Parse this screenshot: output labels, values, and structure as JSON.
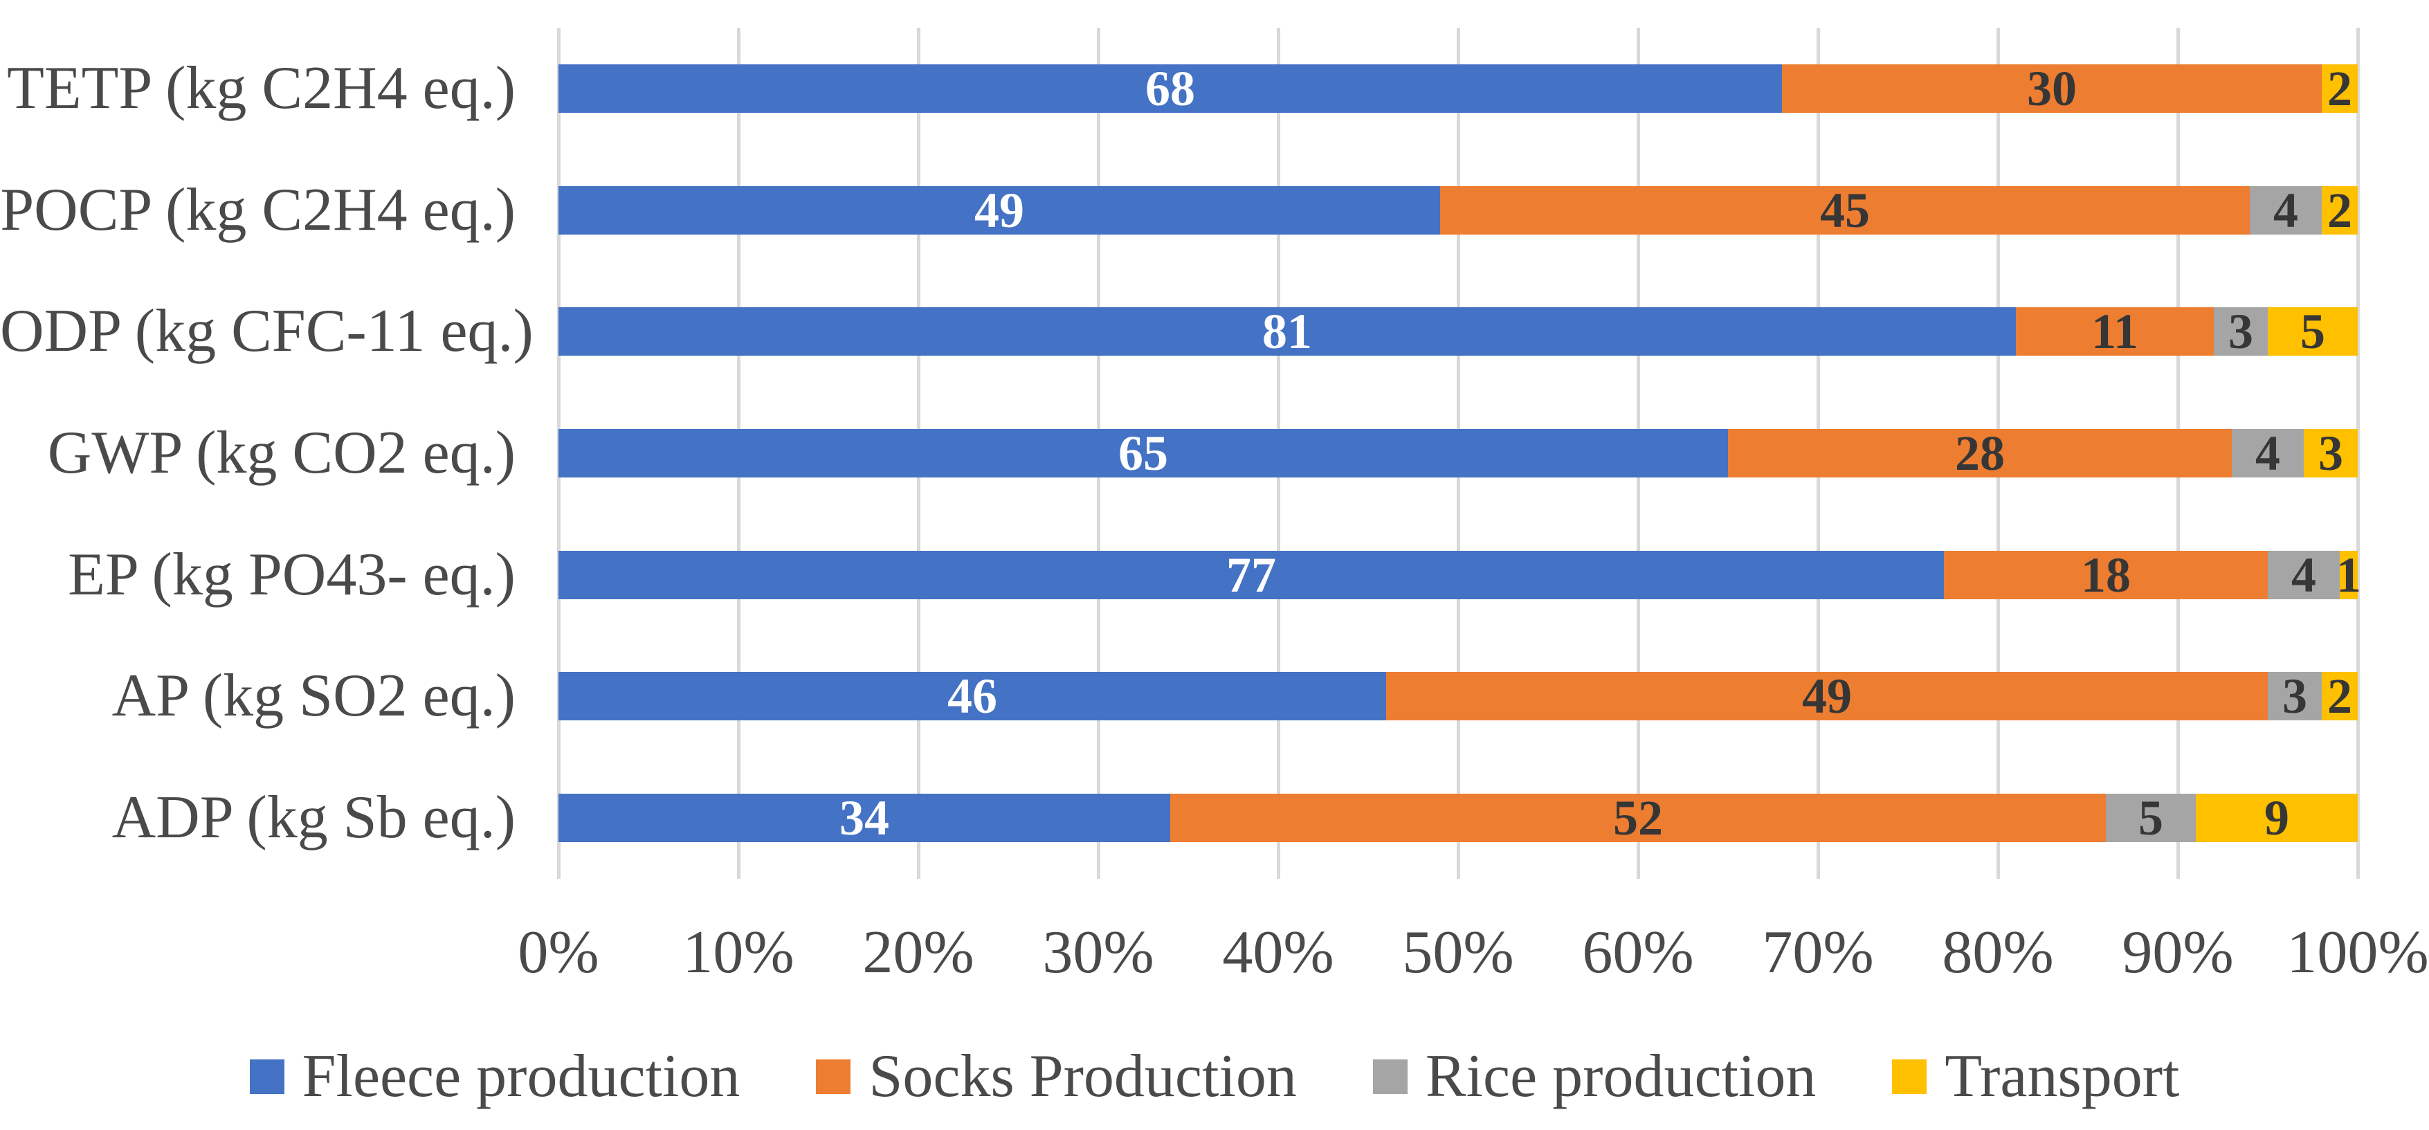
{
  "chart_data": {
    "type": "bar",
    "orientation": "horizontal",
    "stacked": true,
    "stacked_total": 100,
    "title": "",
    "xlabel": "",
    "ylabel": "",
    "xlim": [
      0,
      100
    ],
    "grid": true,
    "legend_position": "bottom",
    "categories": [
      "TETP (kg C2H4 eq.)",
      "POCP (kg C2H4 eq.)",
      "ODP (kg CFC-11 eq.)",
      "GWP (kg CO2 eq.)",
      "EP (kg PO43- eq.)",
      "AP (kg SO2 eq.)",
      "ADP (kg Sb eq.)"
    ],
    "x_ticks": [
      "0%",
      "10%",
      "20%",
      "30%",
      "40%",
      "50%",
      "60%",
      "70%",
      "80%",
      "90%",
      "100%"
    ],
    "series": [
      {
        "name": "Fleece production",
        "color": "#4472C4",
        "label_color": "#FFFFFF",
        "values": [
          68,
          49,
          81,
          65,
          77,
          46,
          34
        ]
      },
      {
        "name": "Socks Production",
        "color": "#ED7D31",
        "label_color": "#363636",
        "values": [
          30,
          45,
          11,
          28,
          18,
          49,
          52
        ]
      },
      {
        "name": "Rice production",
        "color": "#A5A5A5",
        "label_color": "#363636",
        "values": [
          0,
          4,
          3,
          4,
          4,
          3,
          5
        ]
      },
      {
        "name": "Transport",
        "color": "#FFC000",
        "label_color": "#363636",
        "values": [
          2,
          2,
          5,
          3,
          1,
          2,
          9
        ]
      }
    ],
    "show_data_labels": true
  },
  "style_colors": {
    "gridline": "#D9D9D9",
    "axis_text": "#4A4A4A",
    "background": "#FFFFFF"
  }
}
